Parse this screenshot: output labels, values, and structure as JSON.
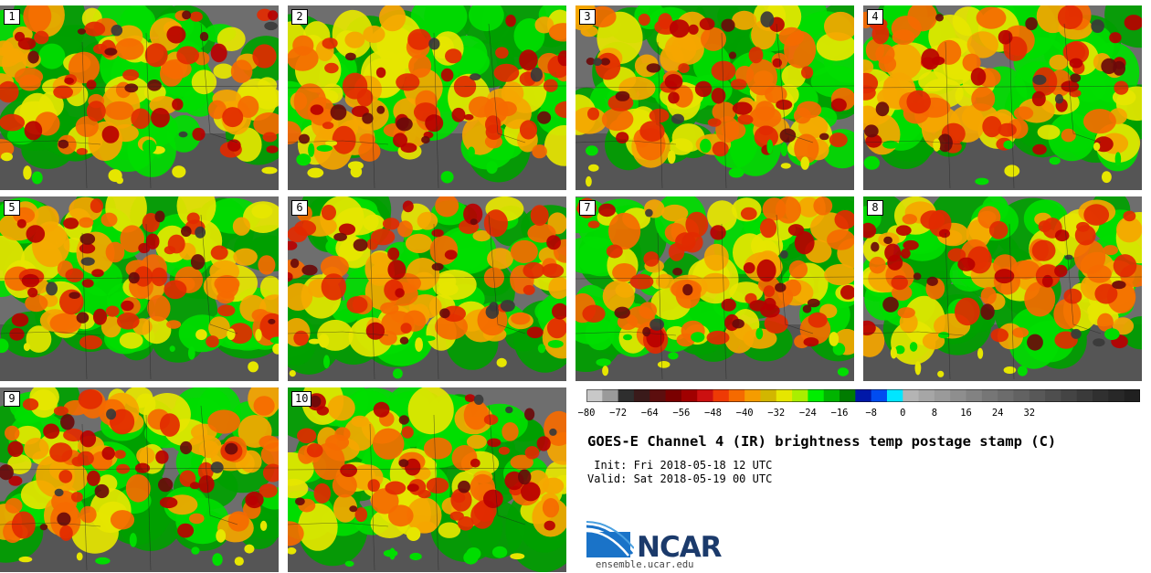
{
  "panels": [
    {
      "label": "1"
    },
    {
      "label": "2"
    },
    {
      "label": "3"
    },
    {
      "label": "4"
    },
    {
      "label": "5"
    },
    {
      "label": "6"
    },
    {
      "label": "7"
    },
    {
      "label": "8"
    },
    {
      "label": "9"
    },
    {
      "label": "10"
    }
  ],
  "colorbar": {
    "colors": [
      "#c8c8c8",
      "#9a9a9a",
      "#2e2e2e",
      "#3a1a1a",
      "#5c0e0e",
      "#7a0000",
      "#a00000",
      "#cc1010",
      "#ee3a05",
      "#f56a00",
      "#f59c00",
      "#d2b600",
      "#e6e600",
      "#aaee00",
      "#00ee00",
      "#00b400",
      "#007c00",
      "#0018a8",
      "#004cf0",
      "#00e6ff",
      "#b4b4b4",
      "#a6a6a6",
      "#9a9a9a",
      "#8e8e8e",
      "#828282",
      "#767676",
      "#6c6c6c",
      "#626262",
      "#585858",
      "#4e4e4e",
      "#444444",
      "#3a3a3a",
      "#303030",
      "#282828",
      "#202020"
    ],
    "tick_labels": [
      "−80",
      "−72",
      "−64",
      "−56",
      "−48",
      "−40",
      "−32",
      "−24",
      "−16",
      "−8",
      "0",
      "8",
      "16",
      "24",
      "32"
    ]
  },
  "title": "GOES-E Channel 4 (IR) brightness temp postage stamp (C)",
  "init": " Init: Fri 2018-05-18 12 UTC",
  "valid": "Valid: Sat 2018-05-19 00 UTC",
  "logo_text": "NCAR",
  "website": "ensemble.ucar.edu"
}
